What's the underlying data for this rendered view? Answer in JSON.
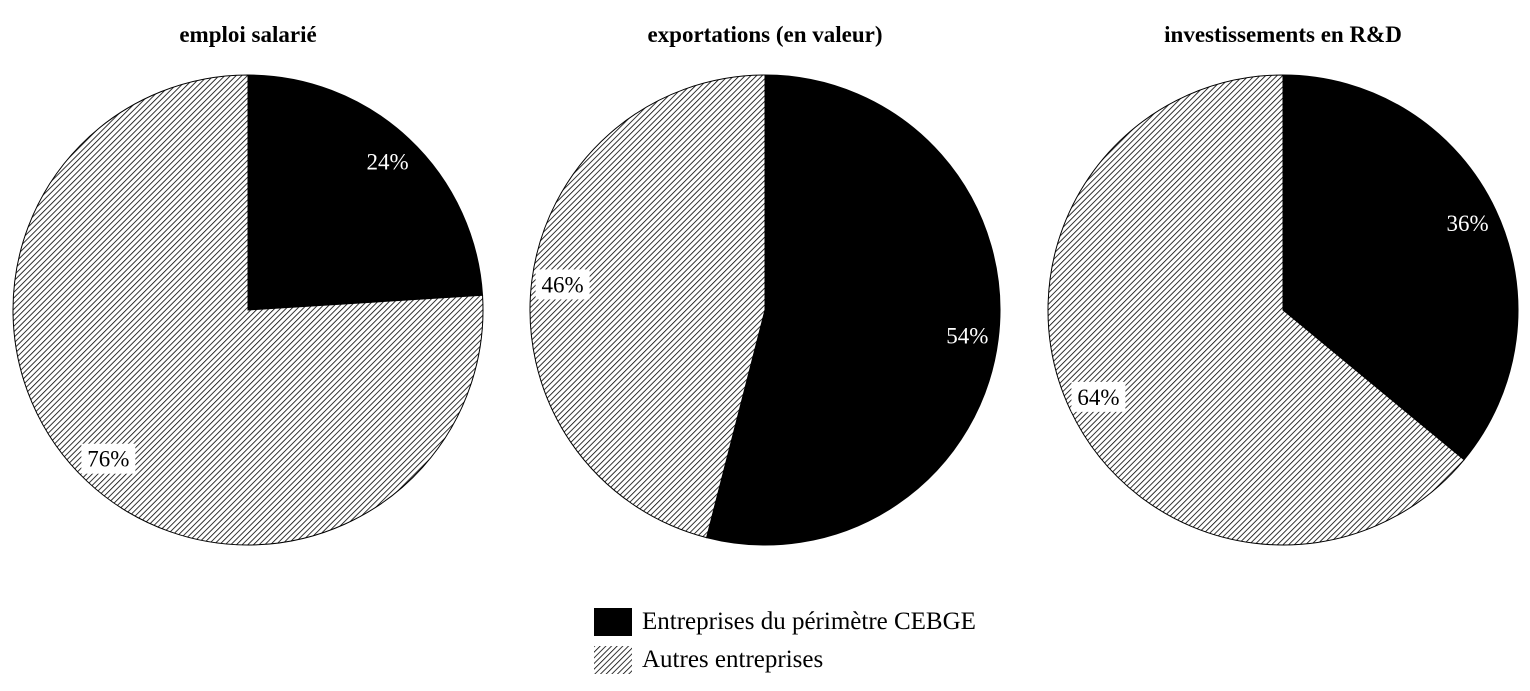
{
  "chart_data": [
    {
      "type": "pie",
      "title": "emploi salarié",
      "slices": [
        {
          "label": "Entreprises du périmètre CEBGE",
          "value": 24,
          "text": "24%"
        },
        {
          "label": "Autres entreprises",
          "value": 76,
          "text": "76%"
        }
      ]
    },
    {
      "type": "pie",
      "title": "exportations (en valeur)",
      "slices": [
        {
          "label": "Entreprises du périmètre CEBGE",
          "value": 54,
          "text": "54%"
        },
        {
          "label": "Autres entreprises",
          "value": 46,
          "text": "46%"
        }
      ]
    },
    {
      "type": "pie",
      "title": "investissements en R&D",
      "slices": [
        {
          "label": "Entreprises du périmètre CEBGE",
          "value": 36,
          "text": "36%"
        },
        {
          "label": "Autres entreprises",
          "value": 64,
          "text": "64%"
        }
      ]
    }
  ],
  "legend": {
    "placement": "bottom-center",
    "items": [
      {
        "label": "Entreprises du périmètre CEBGE",
        "fill": "solid",
        "color": "#000000"
      },
      {
        "label": "Autres entreprises",
        "fill": "diagonal-hatch",
        "color": "#000000"
      }
    ]
  }
}
